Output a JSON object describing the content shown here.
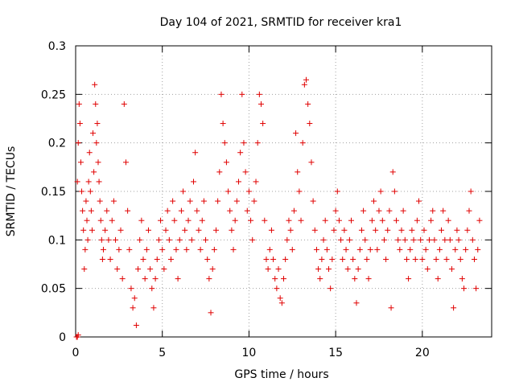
{
  "chart_data": {
    "type": "scatter",
    "title": "Day 104 of 2021, SRMTID for receiver kra1",
    "xlabel": "GPS time / hours",
    "ylabel": "SRMTID / TECUs",
    "xlim": [
      0,
      24
    ],
    "ylim": [
      0,
      0.3
    ],
    "xticks": [
      0,
      5,
      10,
      15,
      20
    ],
    "xtick_labels": [
      "0",
      "5",
      "10",
      "15",
      "20"
    ],
    "yticks": [
      0,
      0.05,
      0.1,
      0.15,
      0.2,
      0.25,
      0.3
    ],
    "ytick_labels": [
      "0",
      "0.05",
      "0.1",
      "0.15",
      "0.2",
      "0.25",
      "0.3"
    ],
    "grid": true,
    "marker": "+",
    "marker_color": "#e00000",
    "series": [
      {
        "name": "SRMTID",
        "points": [
          [
            0.05,
            0.0
          ],
          [
            0.1,
            0.0
          ],
          [
            0.15,
            0.002
          ],
          [
            0.1,
            0.16
          ],
          [
            0.15,
            0.2
          ],
          [
            0.2,
            0.24
          ],
          [
            0.25,
            0.22
          ],
          [
            0.3,
            0.18
          ],
          [
            0.35,
            0.15
          ],
          [
            0.4,
            0.13
          ],
          [
            0.45,
            0.11
          ],
          [
            0.5,
            0.07
          ],
          [
            0.55,
            0.09
          ],
          [
            0.6,
            0.14
          ],
          [
            0.65,
            0.12
          ],
          [
            0.7,
            0.1
          ],
          [
            0.75,
            0.16
          ],
          [
            0.8,
            0.19
          ],
          [
            0.85,
            0.15
          ],
          [
            0.9,
            0.13
          ],
          [
            0.95,
            0.11
          ],
          [
            1.0,
            0.21
          ],
          [
            1.05,
            0.17
          ],
          [
            1.1,
            0.26
          ],
          [
            1.15,
            0.24
          ],
          [
            1.2,
            0.2
          ],
          [
            1.25,
            0.22
          ],
          [
            1.3,
            0.18
          ],
          [
            1.35,
            0.16
          ],
          [
            1.4,
            0.14
          ],
          [
            1.45,
            0.12
          ],
          [
            1.5,
            0.1
          ],
          [
            1.55,
            0.08
          ],
          [
            1.6,
            0.09
          ],
          [
            1.7,
            0.11
          ],
          [
            1.8,
            0.13
          ],
          [
            1.9,
            0.1
          ],
          [
            2.0,
            0.08
          ],
          [
            2.1,
            0.12
          ],
          [
            2.2,
            0.14
          ],
          [
            2.3,
            0.1
          ],
          [
            2.4,
            0.07
          ],
          [
            2.5,
            0.09
          ],
          [
            2.6,
            0.11
          ],
          [
            2.7,
            0.06
          ],
          [
            2.8,
            0.24
          ],
          [
            2.9,
            0.18
          ],
          [
            3.0,
            0.13
          ],
          [
            3.1,
            0.09
          ],
          [
            3.2,
            0.05
          ],
          [
            3.3,
            0.03
          ],
          [
            3.4,
            0.04
          ],
          [
            3.5,
            0.012
          ],
          [
            3.6,
            0.07
          ],
          [
            3.7,
            0.1
          ],
          [
            3.8,
            0.12
          ],
          [
            3.9,
            0.08
          ],
          [
            4.0,
            0.06
          ],
          [
            4.1,
            0.09
          ],
          [
            4.2,
            0.11
          ],
          [
            4.3,
            0.07
          ],
          [
            4.4,
            0.05
          ],
          [
            4.5,
            0.03
          ],
          [
            4.6,
            0.06
          ],
          [
            4.7,
            0.08
          ],
          [
            4.8,
            0.1
          ],
          [
            4.9,
            0.12
          ],
          [
            5.0,
            0.09
          ],
          [
            5.1,
            0.07
          ],
          [
            5.2,
            0.11
          ],
          [
            5.3,
            0.13
          ],
          [
            5.4,
            0.1
          ],
          [
            5.5,
            0.08
          ],
          [
            5.6,
            0.14
          ],
          [
            5.7,
            0.12
          ],
          [
            5.8,
            0.09
          ],
          [
            5.9,
            0.06
          ],
          [
            6.0,
            0.1
          ],
          [
            6.1,
            0.13
          ],
          [
            6.2,
            0.15
          ],
          [
            6.3,
            0.11
          ],
          [
            6.4,
            0.09
          ],
          [
            6.5,
            0.12
          ],
          [
            6.6,
            0.14
          ],
          [
            6.7,
            0.1
          ],
          [
            6.8,
            0.16
          ],
          [
            6.9,
            0.19
          ],
          [
            7.0,
            0.13
          ],
          [
            7.1,
            0.11
          ],
          [
            7.2,
            0.09
          ],
          [
            7.3,
            0.12
          ],
          [
            7.4,
            0.14
          ],
          [
            7.5,
            0.1
          ],
          [
            7.6,
            0.08
          ],
          [
            7.7,
            0.06
          ],
          [
            7.8,
            0.025
          ],
          [
            7.9,
            0.07
          ],
          [
            8.0,
            0.09
          ],
          [
            8.1,
            0.11
          ],
          [
            8.2,
            0.14
          ],
          [
            8.3,
            0.17
          ],
          [
            8.4,
            0.25
          ],
          [
            8.5,
            0.22
          ],
          [
            8.6,
            0.2
          ],
          [
            8.7,
            0.18
          ],
          [
            8.8,
            0.15
          ],
          [
            8.9,
            0.13
          ],
          [
            9.0,
            0.11
          ],
          [
            9.1,
            0.09
          ],
          [
            9.2,
            0.12
          ],
          [
            9.3,
            0.14
          ],
          [
            9.4,
            0.16
          ],
          [
            9.5,
            0.19
          ],
          [
            9.6,
            0.25
          ],
          [
            9.7,
            0.2
          ],
          [
            9.8,
            0.17
          ],
          [
            9.9,
            0.13
          ],
          [
            10.0,
            0.15
          ],
          [
            10.1,
            0.12
          ],
          [
            10.2,
            0.1
          ],
          [
            10.3,
            0.14
          ],
          [
            10.4,
            0.16
          ],
          [
            10.5,
            0.2
          ],
          [
            10.6,
            0.25
          ],
          [
            10.7,
            0.24
          ],
          [
            10.8,
            0.22
          ],
          [
            10.9,
            0.12
          ],
          [
            11.0,
            0.08
          ],
          [
            11.1,
            0.07
          ],
          [
            11.2,
            0.09
          ],
          [
            11.3,
            0.11
          ],
          [
            11.4,
            0.08
          ],
          [
            11.5,
            0.06
          ],
          [
            11.6,
            0.05
          ],
          [
            11.7,
            0.07
          ],
          [
            11.8,
            0.04
          ],
          [
            11.9,
            0.035
          ],
          [
            12.0,
            0.06
          ],
          [
            12.1,
            0.08
          ],
          [
            12.2,
            0.1
          ],
          [
            12.3,
            0.12
          ],
          [
            12.4,
            0.11
          ],
          [
            12.5,
            0.09
          ],
          [
            12.6,
            0.13
          ],
          [
            12.7,
            0.21
          ],
          [
            12.8,
            0.17
          ],
          [
            12.9,
            0.15
          ],
          [
            13.0,
            0.12
          ],
          [
            13.1,
            0.2
          ],
          [
            13.2,
            0.26
          ],
          [
            13.3,
            0.265
          ],
          [
            13.4,
            0.24
          ],
          [
            13.5,
            0.22
          ],
          [
            13.6,
            0.18
          ],
          [
            13.7,
            0.14
          ],
          [
            13.8,
            0.11
          ],
          [
            13.9,
            0.09
          ],
          [
            14.0,
            0.07
          ],
          [
            14.1,
            0.06
          ],
          [
            14.2,
            0.08
          ],
          [
            14.3,
            0.1
          ],
          [
            14.4,
            0.12
          ],
          [
            14.5,
            0.09
          ],
          [
            14.6,
            0.07
          ],
          [
            14.7,
            0.05
          ],
          [
            14.8,
            0.08
          ],
          [
            14.9,
            0.11
          ],
          [
            15.0,
            0.13
          ],
          [
            15.1,
            0.15
          ],
          [
            15.2,
            0.12
          ],
          [
            15.3,
            0.1
          ],
          [
            15.4,
            0.08
          ],
          [
            15.5,
            0.11
          ],
          [
            15.6,
            0.09
          ],
          [
            15.7,
            0.07
          ],
          [
            15.8,
            0.1
          ],
          [
            15.9,
            0.12
          ],
          [
            16.0,
            0.08
          ],
          [
            16.1,
            0.06
          ],
          [
            16.2,
            0.035
          ],
          [
            16.3,
            0.07
          ],
          [
            16.4,
            0.09
          ],
          [
            16.5,
            0.11
          ],
          [
            16.6,
            0.13
          ],
          [
            16.7,
            0.1
          ],
          [
            16.8,
            0.08
          ],
          [
            16.9,
            0.06
          ],
          [
            17.0,
            0.09
          ],
          [
            17.1,
            0.12
          ],
          [
            17.2,
            0.14
          ],
          [
            17.3,
            0.11
          ],
          [
            17.4,
            0.09
          ],
          [
            17.5,
            0.13
          ],
          [
            17.6,
            0.15
          ],
          [
            17.7,
            0.12
          ],
          [
            17.8,
            0.1
          ],
          [
            17.9,
            0.08
          ],
          [
            18.0,
            0.11
          ],
          [
            18.1,
            0.13
          ],
          [
            18.2,
            0.03
          ],
          [
            18.3,
            0.17
          ],
          [
            18.4,
            0.15
          ],
          [
            18.5,
            0.12
          ],
          [
            18.6,
            0.1
          ],
          [
            18.7,
            0.09
          ],
          [
            18.8,
            0.11
          ],
          [
            18.9,
            0.13
          ],
          [
            19.0,
            0.1
          ],
          [
            19.1,
            0.08
          ],
          [
            19.2,
            0.06
          ],
          [
            19.3,
            0.09
          ],
          [
            19.4,
            0.11
          ],
          [
            19.5,
            0.1
          ],
          [
            19.6,
            0.08
          ],
          [
            19.7,
            0.12
          ],
          [
            19.8,
            0.14
          ],
          [
            19.9,
            0.1
          ],
          [
            20.0,
            0.08
          ],
          [
            20.1,
            0.11
          ],
          [
            20.2,
            0.09
          ],
          [
            20.3,
            0.07
          ],
          [
            20.4,
            0.1
          ],
          [
            20.5,
            0.12
          ],
          [
            20.6,
            0.13
          ],
          [
            20.7,
            0.1
          ],
          [
            20.8,
            0.08
          ],
          [
            20.9,
            0.06
          ],
          [
            21.0,
            0.09
          ],
          [
            21.1,
            0.11
          ],
          [
            21.2,
            0.13
          ],
          [
            21.3,
            0.1
          ],
          [
            21.4,
            0.08
          ],
          [
            21.5,
            0.12
          ],
          [
            21.6,
            0.1
          ],
          [
            21.7,
            0.07
          ],
          [
            21.8,
            0.03
          ],
          [
            21.9,
            0.09
          ],
          [
            22.0,
            0.11
          ],
          [
            22.1,
            0.1
          ],
          [
            22.2,
            0.08
          ],
          [
            22.3,
            0.06
          ],
          [
            22.4,
            0.05
          ],
          [
            22.5,
            0.09
          ],
          [
            22.6,
            0.11
          ],
          [
            22.7,
            0.13
          ],
          [
            22.8,
            0.15
          ],
          [
            22.9,
            0.1
          ],
          [
            23.0,
            0.08
          ],
          [
            23.1,
            0.05
          ],
          [
            23.2,
            0.09
          ],
          [
            23.3,
            0.12
          ]
        ]
      }
    ]
  }
}
